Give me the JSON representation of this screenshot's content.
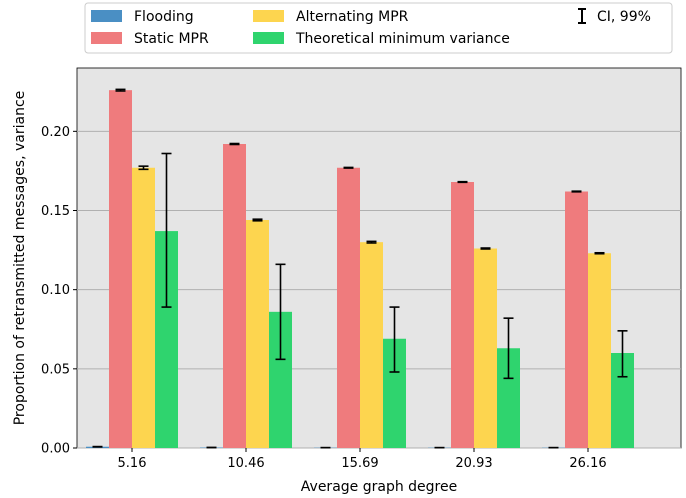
{
  "chart_data": {
    "type": "bar",
    "xlabel": "Average graph degree",
    "ylabel": "Proportion of retransmitted messages, variance",
    "categories": [
      "5.16",
      "10.46",
      "15.69",
      "20.93",
      "26.16"
    ],
    "ylim": [
      0,
      0.24
    ],
    "yticks": [
      0.0,
      0.05,
      0.1,
      0.15,
      0.2
    ],
    "ytick_labels": [
      "0.00",
      "0.05",
      "0.10",
      "0.15",
      "0.20"
    ],
    "grid": "horizontal",
    "background": "#e5e5e5",
    "legend_position": "top",
    "ci_label": "CI, 99%",
    "series": [
      {
        "name": "Flooding",
        "color": "#4a8fc4",
        "values": [
          0.0008,
          0.0003,
          0.0002,
          0.0002,
          0.0002
        ],
        "ci_low": [
          0.0007,
          0.0003,
          0.0002,
          0.0002,
          0.0002
        ],
        "ci_high": [
          0.0009,
          0.0003,
          0.0002,
          0.0002,
          0.0002
        ]
      },
      {
        "name": "Static MPR",
        "color": "#ef7b7d",
        "values": [
          0.226,
          0.192,
          0.177,
          0.168,
          0.162
        ],
        "ci_low": [
          0.2255,
          0.1917,
          0.1768,
          0.1678,
          0.1618
        ],
        "ci_high": [
          0.2265,
          0.1923,
          0.1772,
          0.1682,
          0.1622
        ]
      },
      {
        "name": "Alternating MPR",
        "color": "#fdd54f",
        "values": [
          0.177,
          0.144,
          0.13,
          0.126,
          0.123
        ],
        "ci_low": [
          0.176,
          0.1435,
          0.1295,
          0.1257,
          0.1227
        ],
        "ci_high": [
          0.178,
          0.1445,
          0.1305,
          0.1263,
          0.1233
        ]
      },
      {
        "name": "Theoretical minimum variance",
        "color": "#2fd46e",
        "values": [
          0.137,
          0.086,
          0.069,
          0.063,
          0.06
        ],
        "ci_low": [
          0.089,
          0.056,
          0.048,
          0.044,
          0.045
        ],
        "ci_high": [
          0.186,
          0.116,
          0.089,
          0.082,
          0.074
        ]
      }
    ]
  }
}
